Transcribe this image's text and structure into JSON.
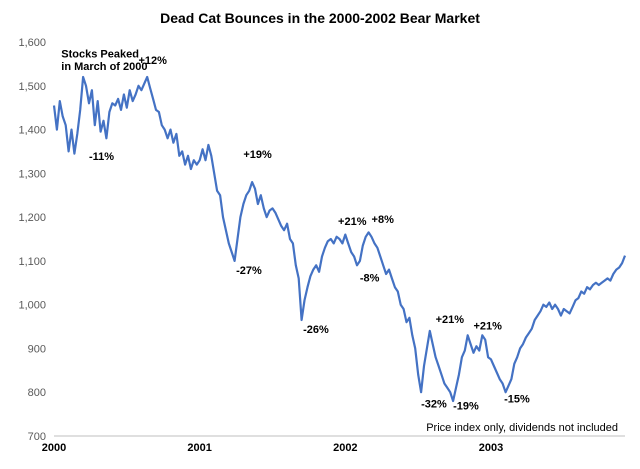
{
  "chart_data": {
    "type": "line",
    "title": "Dead Cat Bounces in the 2000-2002 Bear Market",
    "xlabel": "",
    "ylabel": "",
    "ylim": [
      700,
      1600
    ],
    "yticks": [
      700,
      800,
      900,
      1000,
      1100,
      1200,
      1300,
      1400,
      1500,
      1600
    ],
    "ytick_labels": [
      "700",
      "800",
      "900",
      "1,000",
      "1,100",
      "1,200",
      "1,300",
      "1,400",
      "1,500",
      "1,600"
    ],
    "xlim": [
      2000.0,
      2003.92
    ],
    "xticks": [
      2000,
      2001,
      2002,
      2003
    ],
    "xtick_labels": [
      "2000",
      "2001",
      "2002",
      "2003"
    ],
    "grid": false,
    "line_color": "#4472C4",
    "note": "Price index only, dividends not included",
    "series": [
      {
        "values": [
          [
            2000.0,
            1455
          ],
          [
            2000.02,
            1400
          ],
          [
            2000.04,
            1465
          ],
          [
            2000.06,
            1430
          ],
          [
            2000.08,
            1410
          ],
          [
            2000.1,
            1350
          ],
          [
            2000.12,
            1400
          ],
          [
            2000.14,
            1345
          ],
          [
            2000.16,
            1390
          ],
          [
            2000.18,
            1445
          ],
          [
            2000.2,
            1520
          ],
          [
            2000.22,
            1500
          ],
          [
            2000.24,
            1460
          ],
          [
            2000.26,
            1490
          ],
          [
            2000.28,
            1410
          ],
          [
            2000.3,
            1465
          ],
          [
            2000.32,
            1395
          ],
          [
            2000.34,
            1420
          ],
          [
            2000.36,
            1380
          ],
          [
            2000.38,
            1440
          ],
          [
            2000.4,
            1460
          ],
          [
            2000.42,
            1455
          ],
          [
            2000.44,
            1470
          ],
          [
            2000.46,
            1445
          ],
          [
            2000.48,
            1480
          ],
          [
            2000.5,
            1450
          ],
          [
            2000.52,
            1490
          ],
          [
            2000.54,
            1465
          ],
          [
            2000.56,
            1480
          ],
          [
            2000.58,
            1500
          ],
          [
            2000.6,
            1490
          ],
          [
            2000.62,
            1505
          ],
          [
            2000.64,
            1520
          ],
          [
            2000.66,
            1495
          ],
          [
            2000.68,
            1470
          ],
          [
            2000.7,
            1445
          ],
          [
            2000.72,
            1440
          ],
          [
            2000.74,
            1410
          ],
          [
            2000.76,
            1400
          ],
          [
            2000.78,
            1380
          ],
          [
            2000.8,
            1400
          ],
          [
            2000.82,
            1370
          ],
          [
            2000.84,
            1390
          ],
          [
            2000.86,
            1340
          ],
          [
            2000.88,
            1350
          ],
          [
            2000.9,
            1320
          ],
          [
            2000.92,
            1340
          ],
          [
            2000.94,
            1310
          ],
          [
            2000.96,
            1330
          ],
          [
            2000.98,
            1320
          ],
          [
            2001.0,
            1330
          ],
          [
            2001.02,
            1355
          ],
          [
            2001.04,
            1330
          ],
          [
            2001.06,
            1365
          ],
          [
            2001.08,
            1340
          ],
          [
            2001.1,
            1300
          ],
          [
            2001.12,
            1260
          ],
          [
            2001.14,
            1250
          ],
          [
            2001.16,
            1200
          ],
          [
            2001.18,
            1170
          ],
          [
            2001.2,
            1140
          ],
          [
            2001.22,
            1120
          ],
          [
            2001.24,
            1100
          ],
          [
            2001.26,
            1150
          ],
          [
            2001.28,
            1200
          ],
          [
            2001.3,
            1230
          ],
          [
            2001.32,
            1250
          ],
          [
            2001.34,
            1260
          ],
          [
            2001.36,
            1280
          ],
          [
            2001.38,
            1265
          ],
          [
            2001.4,
            1230
          ],
          [
            2001.42,
            1250
          ],
          [
            2001.44,
            1220
          ],
          [
            2001.46,
            1200
          ],
          [
            2001.48,
            1215
          ],
          [
            2001.5,
            1220
          ],
          [
            2001.52,
            1210
          ],
          [
            2001.54,
            1195
          ],
          [
            2001.56,
            1180
          ],
          [
            2001.58,
            1170
          ],
          [
            2001.6,
            1185
          ],
          [
            2001.62,
            1150
          ],
          [
            2001.64,
            1140
          ],
          [
            2001.66,
            1090
          ],
          [
            2001.68,
            1060
          ],
          [
            2001.7,
            965
          ],
          [
            2001.72,
            1010
          ],
          [
            2001.74,
            1040
          ],
          [
            2001.76,
            1065
          ],
          [
            2001.78,
            1080
          ],
          [
            2001.8,
            1090
          ],
          [
            2001.82,
            1075
          ],
          [
            2001.84,
            1110
          ],
          [
            2001.86,
            1130
          ],
          [
            2001.88,
            1145
          ],
          [
            2001.9,
            1150
          ],
          [
            2001.92,
            1140
          ],
          [
            2001.94,
            1155
          ],
          [
            2001.96,
            1150
          ],
          [
            2001.98,
            1140
          ],
          [
            2002.0,
            1160
          ],
          [
            2002.02,
            1140
          ],
          [
            2002.04,
            1120
          ],
          [
            2002.06,
            1110
          ],
          [
            2002.08,
            1090
          ],
          [
            2002.1,
            1100
          ],
          [
            2002.12,
            1135
          ],
          [
            2002.14,
            1155
          ],
          [
            2002.16,
            1165
          ],
          [
            2002.18,
            1155
          ],
          [
            2002.2,
            1140
          ],
          [
            2002.22,
            1130
          ],
          [
            2002.24,
            1110
          ],
          [
            2002.26,
            1090
          ],
          [
            2002.28,
            1070
          ],
          [
            2002.3,
            1080
          ],
          [
            2002.32,
            1060
          ],
          [
            2002.34,
            1040
          ],
          [
            2002.36,
            1030
          ],
          [
            2002.38,
            1000
          ],
          [
            2002.4,
            990
          ],
          [
            2002.42,
            960
          ],
          [
            2002.44,
            970
          ],
          [
            2002.46,
            930
          ],
          [
            2002.48,
            900
          ],
          [
            2002.5,
            840
          ],
          [
            2002.52,
            800
          ],
          [
            2002.54,
            860
          ],
          [
            2002.56,
            900
          ],
          [
            2002.58,
            940
          ],
          [
            2002.6,
            910
          ],
          [
            2002.62,
            880
          ],
          [
            2002.64,
            860
          ],
          [
            2002.66,
            840
          ],
          [
            2002.68,
            820
          ],
          [
            2002.7,
            810
          ],
          [
            2002.72,
            800
          ],
          [
            2002.74,
            780
          ],
          [
            2002.76,
            810
          ],
          [
            2002.78,
            840
          ],
          [
            2002.8,
            880
          ],
          [
            2002.82,
            895
          ],
          [
            2002.84,
            930
          ],
          [
            2002.86,
            910
          ],
          [
            2002.88,
            890
          ],
          [
            2002.9,
            905
          ],
          [
            2002.92,
            895
          ],
          [
            2002.94,
            930
          ],
          [
            2002.96,
            920
          ],
          [
            2002.98,
            880
          ],
          [
            2003.0,
            875
          ],
          [
            2003.02,
            860
          ],
          [
            2003.04,
            845
          ],
          [
            2003.06,
            830
          ],
          [
            2003.08,
            820
          ],
          [
            2003.1,
            800
          ],
          [
            2003.12,
            815
          ],
          [
            2003.14,
            830
          ],
          [
            2003.16,
            865
          ],
          [
            2003.18,
            880
          ],
          [
            2003.2,
            900
          ],
          [
            2003.22,
            910
          ],
          [
            2003.24,
            925
          ],
          [
            2003.26,
            935
          ],
          [
            2003.28,
            945
          ],
          [
            2003.3,
            965
          ],
          [
            2003.32,
            975
          ],
          [
            2003.34,
            985
          ],
          [
            2003.36,
            1000
          ],
          [
            2003.38,
            995
          ],
          [
            2003.4,
            1005
          ],
          [
            2003.42,
            990
          ],
          [
            2003.44,
            1000
          ],
          [
            2003.46,
            990
          ],
          [
            2003.48,
            975
          ],
          [
            2003.5,
            990
          ],
          [
            2003.52,
            985
          ],
          [
            2003.54,
            980
          ],
          [
            2003.56,
            995
          ],
          [
            2003.58,
            1010
          ],
          [
            2003.6,
            1015
          ],
          [
            2003.62,
            1030
          ],
          [
            2003.64,
            1025
          ],
          [
            2003.66,
            1040
          ],
          [
            2003.68,
            1035
          ],
          [
            2003.7,
            1045
          ],
          [
            2003.72,
            1050
          ],
          [
            2003.74,
            1045
          ],
          [
            2003.76,
            1050
          ],
          [
            2003.78,
            1055
          ],
          [
            2003.8,
            1060
          ],
          [
            2003.82,
            1055
          ],
          [
            2003.84,
            1070
          ],
          [
            2003.86,
            1080
          ],
          [
            2003.88,
            1085
          ],
          [
            2003.9,
            1095
          ],
          [
            2003.92,
            1112
          ]
        ]
      }
    ],
    "annotations": [
      {
        "text": "Stocks Peaked",
        "x": 2000.05,
        "y": 1565
      },
      {
        "text": "in March of 2000",
        "x": 2000.05,
        "y": 1536
      },
      {
        "text": "+12%",
        "x": 2000.58,
        "y": 1550
      },
      {
        "text": "-11%",
        "x": 2000.24,
        "y": 1330
      },
      {
        "text": "+19%",
        "x": 2001.3,
        "y": 1335
      },
      {
        "text": "-27%",
        "x": 2001.25,
        "y": 1070
      },
      {
        "text": "-26%",
        "x": 2001.71,
        "y": 935
      },
      {
        "text": "+21%",
        "x": 2001.95,
        "y": 1182
      },
      {
        "text": "+8%",
        "x": 2002.18,
        "y": 1187
      },
      {
        "text": "-8%",
        "x": 2002.1,
        "y": 1053
      },
      {
        "text": "-32%",
        "x": 2002.52,
        "y": 765
      },
      {
        "text": "+21%",
        "x": 2002.62,
        "y": 958
      },
      {
        "text": "-19%",
        "x": 2002.74,
        "y": 760
      },
      {
        "text": "+21%",
        "x": 2002.88,
        "y": 943
      },
      {
        "text": "-15%",
        "x": 2003.09,
        "y": 777
      }
    ]
  }
}
